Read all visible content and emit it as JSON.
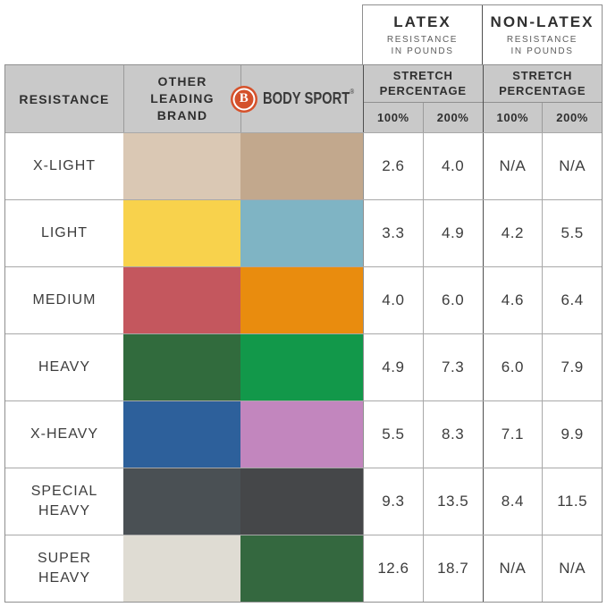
{
  "table": {
    "latex_group": {
      "title": "LATEX",
      "subtitle": "RESISTANCE\nIN POUNDS"
    },
    "nonlatex_group": {
      "title": "NON-LATEX",
      "subtitle": "RESISTANCE\nIN POUNDS"
    },
    "resistance_header": "RESISTANCE",
    "other_brand_header": "OTHER\nLEADING\nBRAND",
    "brand": {
      "logo_letter": "B",
      "name": "BODY SPORT",
      "trademark": "®"
    },
    "stretch_header": "STRETCH\nPERCENTAGE",
    "pct_100": "100%",
    "pct_200": "200%"
  },
  "colors": {
    "header_bg": "#c9c9c9",
    "logo_orange": "#d4512b"
  },
  "chart_data": {
    "type": "table",
    "columns": [
      "RESISTANCE",
      "OTHER LEADING BRAND (color)",
      "BODY SPORT (color)",
      "LATEX STRETCH PERCENTAGE 100%",
      "LATEX STRETCH PERCENTAGE 200%",
      "NON-LATEX STRETCH PERCENTAGE 100%",
      "NON-LATEX STRETCH PERCENTAGE 200%"
    ],
    "units": "resistance in pounds",
    "rows": [
      {
        "label": "X-LIGHT",
        "other_color": "#dac8b4",
        "bodysport_color": "#c2a88d",
        "latex_100": "2.6",
        "latex_200": "4.0",
        "nonlatex_100": "N/A",
        "nonlatex_200": "N/A"
      },
      {
        "label": "LIGHT",
        "other_color": "#f8d24c",
        "bodysport_color": "#7fb4c4",
        "latex_100": "3.3",
        "latex_200": "4.9",
        "nonlatex_100": "4.2",
        "nonlatex_200": "5.5"
      },
      {
        "label": "MEDIUM",
        "other_color": "#c4575e",
        "bodysport_color": "#e98c0e",
        "latex_100": "4.0",
        "latex_200": "6.0",
        "nonlatex_100": "4.6",
        "nonlatex_200": "6.4"
      },
      {
        "label": "HEAVY",
        "other_color": "#316b3d",
        "bodysport_color": "#12984a",
        "latex_100": "4.9",
        "latex_200": "7.3",
        "nonlatex_100": "6.0",
        "nonlatex_200": "7.9"
      },
      {
        "label": "X-HEAVY",
        "other_color": "#2d609b",
        "bodysport_color": "#c286be",
        "latex_100": "5.5",
        "latex_200": "8.3",
        "nonlatex_100": "7.1",
        "nonlatex_200": "9.9"
      },
      {
        "label": "SPECIAL\nHEAVY",
        "other_color": "#4a5054",
        "bodysport_color": "#454749",
        "latex_100": "9.3",
        "latex_200": "13.5",
        "nonlatex_100": "8.4",
        "nonlatex_200": "11.5"
      },
      {
        "label": "SUPER\nHEAVY",
        "other_color": "#dfdcd3",
        "bodysport_color": "#34683f",
        "latex_100": "12.6",
        "latex_200": "18.7",
        "nonlatex_100": "N/A",
        "nonlatex_200": "N/A"
      }
    ]
  }
}
